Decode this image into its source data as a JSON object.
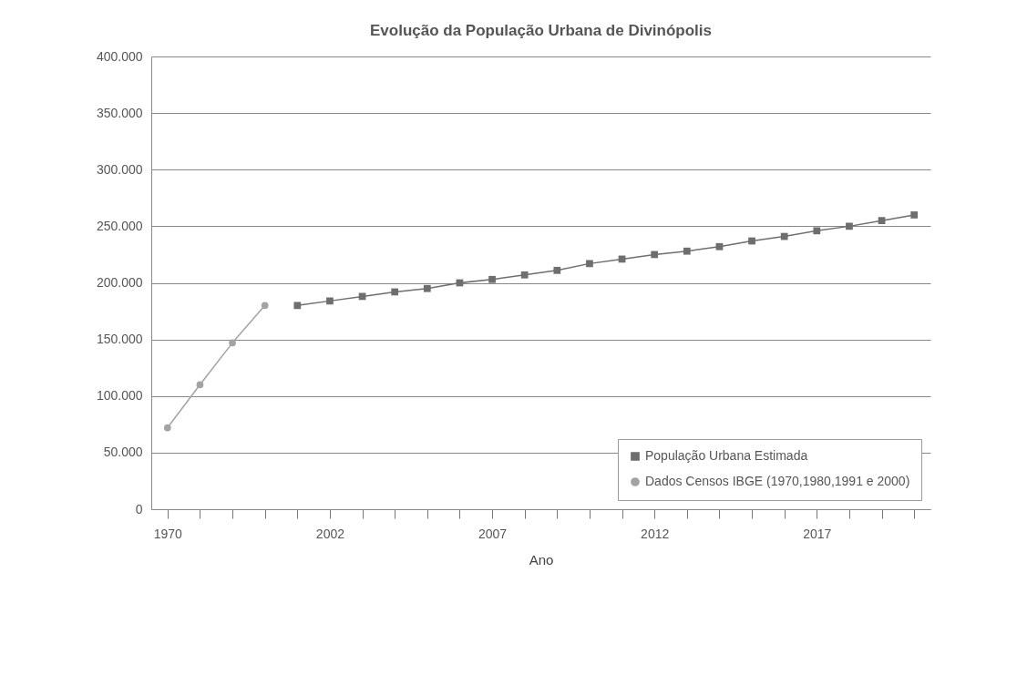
{
  "chart_data": {
    "type": "line",
    "title": "Evolução da População Urbana de Divinópolis",
    "xlabel": "Ano",
    "categories": [
      "1970",
      null,
      null,
      null,
      null,
      "2002",
      null,
      null,
      null,
      null,
      "2007",
      null,
      null,
      null,
      null,
      "2012",
      null,
      null,
      null,
      null,
      "2017",
      null,
      null,
      null
    ],
    "series": [
      {
        "name": "População Urbana Estimada",
        "color": "#6e6e6e",
        "marker": "square",
        "values": [
          null,
          null,
          null,
          null,
          180000,
          184000,
          188000,
          192000,
          195000,
          200000,
          203000,
          207000,
          211000,
          217000,
          221000,
          225000,
          228000,
          232000,
          237000,
          241000,
          246000,
          250000,
          255000,
          260000
        ]
      },
      {
        "name": "Dados Censos IBGE (1970,1980,1991 e 2000)",
        "color": "#a3a3a3",
        "marker": "circle",
        "values": [
          72000,
          110000,
          147000,
          180000,
          null,
          null,
          null,
          null,
          null,
          null,
          null,
          null,
          null,
          null,
          null,
          null,
          null,
          null,
          null,
          null,
          null,
          null,
          null,
          null
        ]
      }
    ],
    "ylim": [
      0,
      400000
    ],
    "yticks": [
      {
        "value": 0,
        "label": "0"
      },
      {
        "value": 50000,
        "label": "50.000"
      },
      {
        "value": 100000,
        "label": "100.000"
      },
      {
        "value": 150000,
        "label": "150.000"
      },
      {
        "value": 200000,
        "label": "200.000"
      },
      {
        "value": 250000,
        "label": "250.000"
      },
      {
        "value": 300000,
        "label": "300.000"
      },
      {
        "value": 350000,
        "label": "350.000"
      },
      {
        "value": 400000,
        "label": "400.000"
      }
    ],
    "grid": "y",
    "legend": "bottom right",
    "line_style": "solid"
  }
}
